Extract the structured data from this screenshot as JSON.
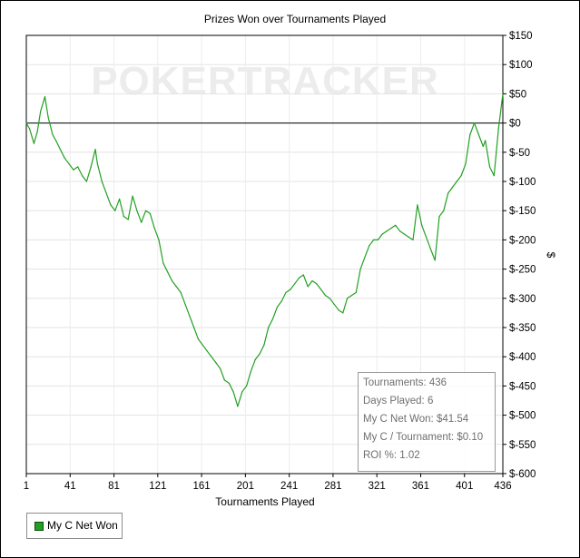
{
  "watermark": "POKERTRACKER",
  "chart_data": {
    "type": "line",
    "title": "Prizes Won over Tournaments Played",
    "xlabel": "Tournaments Played",
    "ylabel": "$",
    "xlim": [
      1,
      436
    ],
    "ylim": [
      -600,
      150
    ],
    "x_ticks": [
      "1",
      "41",
      "81",
      "121",
      "161",
      "201",
      "241",
      "281",
      "321",
      "361",
      "401",
      "436"
    ],
    "y_ticks": [
      "$150",
      "$100",
      "$50",
      "$0",
      "$-50",
      "$-100",
      "$-150",
      "$-200",
      "$-250",
      "$-300",
      "$-350",
      "$-400",
      "$-450",
      "$-500",
      "$-550",
      "$-600"
    ],
    "grid": true,
    "zero_line": true,
    "legend_position": "bottom-left",
    "series": [
      {
        "name": "My C Net Won",
        "color": "#22a022",
        "x": [
          1,
          4,
          8,
          11,
          14,
          18,
          21,
          25,
          28,
          32,
          36,
          40,
          44,
          48,
          52,
          56,
          60,
          64,
          66,
          70,
          74,
          78,
          82,
          86,
          90,
          94,
          98,
          102,
          106,
          110,
          114,
          118,
          122,
          126,
          130,
          134,
          138,
          142,
          146,
          150,
          154,
          158,
          162,
          166,
          170,
          174,
          178,
          182,
          186,
          190,
          194,
          198,
          202,
          206,
          210,
          214,
          218,
          222,
          226,
          230,
          234,
          238,
          242,
          246,
          250,
          254,
          258,
          262,
          266,
          270,
          274,
          278,
          282,
          286,
          290,
          294,
          298,
          302,
          306,
          310,
          314,
          318,
          322,
          326,
          330,
          334,
          338,
          342,
          346,
          350,
          354,
          358,
          362,
          366,
          370,
          374,
          378,
          382,
          386,
          390,
          394,
          398,
          402,
          406,
          410,
          414,
          418,
          420,
          424,
          428,
          430,
          432,
          434,
          436
        ],
        "values": [
          0,
          -10,
          -35,
          -15,
          20,
          45,
          10,
          -20,
          -30,
          -45,
          -60,
          -70,
          -80,
          -75,
          -90,
          -100,
          -75,
          -45,
          -70,
          -100,
          -120,
          -140,
          -150,
          -130,
          -160,
          -165,
          -125,
          -150,
          -170,
          -150,
          -155,
          -180,
          -200,
          -240,
          -255,
          -270,
          -280,
          -290,
          -310,
          -330,
          -350,
          -370,
          -380,
          -390,
          -400,
          -410,
          -420,
          -440,
          -445,
          -460,
          -485,
          -460,
          -450,
          -425,
          -405,
          -395,
          -380,
          -350,
          -335,
          -315,
          -305,
          -290,
          -285,
          -275,
          -265,
          -260,
          -280,
          -270,
          -275,
          -285,
          -295,
          -300,
          -310,
          -320,
          -325,
          -300,
          -295,
          -290,
          -250,
          -230,
          -210,
          -200,
          -200,
          -190,
          -185,
          -180,
          -175,
          -185,
          -190,
          -195,
          -200,
          -140,
          -175,
          -195,
          -215,
          -235,
          -160,
          -150,
          -120,
          -110,
          -100,
          -90,
          -70,
          -20,
          0,
          -20,
          -40,
          -30,
          -75,
          -90,
          -50,
          -10,
          20,
          50
        ]
      }
    ]
  },
  "stats": [
    "Tournaments: 436",
    "Days Played: 6",
    "My C Net Won: $41.54",
    "My C / Tournament: $0.10",
    "ROI %: 1.02"
  ],
  "legend": {
    "label": "My C Net Won",
    "color": "#22a022"
  }
}
